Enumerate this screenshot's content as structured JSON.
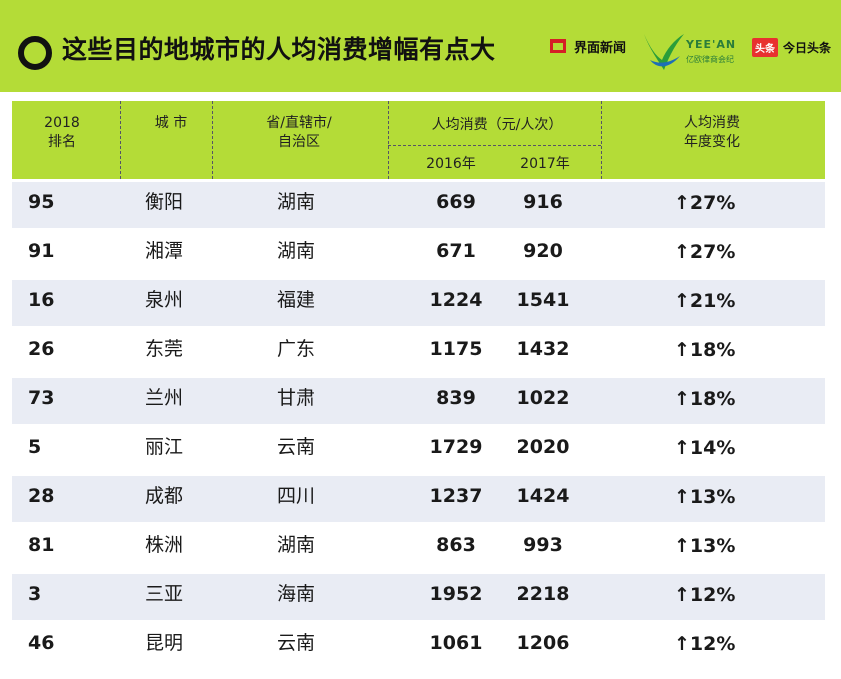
{
  "header": {
    "title": "这些目的地城市的人均消费增幅有点大",
    "logo1": "界面新闻",
    "logo2_main": "YEE'AN",
    "logo2_sub": "亿欧律商会纪",
    "logo3_badge": "头条",
    "logo3": "今日头条"
  },
  "colors": {
    "accent": "#b4dc37",
    "row_alt": "#e9ecf4",
    "logo_red": "#d51f26"
  },
  "table": {
    "headers": {
      "rank": [
        "2018",
        "排名"
      ],
      "city": "城 市",
      "province": [
        "省/直辖市/",
        "自治区"
      ],
      "spend": "人均消费（元/人次）",
      "y2016": "2016年",
      "y2017": "2017年",
      "change": [
        "人均消费",
        "年度变化"
      ]
    },
    "rows": [
      {
        "rank": "95",
        "city": "衡阳",
        "province": "湖南",
        "v2016": "669",
        "v2017": "916",
        "change": "↑27%"
      },
      {
        "rank": "91",
        "city": "湘潭",
        "province": "湖南",
        "v2016": "671",
        "v2017": "920",
        "change": "↑27%"
      },
      {
        "rank": "16",
        "city": "泉州",
        "province": "福建",
        "v2016": "1224",
        "v2017": "1541",
        "change": "↑21%"
      },
      {
        "rank": "26",
        "city": "东莞",
        "province": "广东",
        "v2016": "1175",
        "v2017": "1432",
        "change": "↑18%"
      },
      {
        "rank": "73",
        "city": "兰州",
        "province": "甘肃",
        "v2016": "839",
        "v2017": "1022",
        "change": "↑18%"
      },
      {
        "rank": "5",
        "city": "丽江",
        "province": "云南",
        "v2016": "1729",
        "v2017": "2020",
        "change": "↑14%"
      },
      {
        "rank": "28",
        "city": "成都",
        "province": "四川",
        "v2016": "1237",
        "v2017": "1424",
        "change": "↑13%"
      },
      {
        "rank": "81",
        "city": "株洲",
        "province": "湖南",
        "v2016": "863",
        "v2017": "993",
        "change": "↑13%"
      },
      {
        "rank": "3",
        "city": "三亚",
        "province": "海南",
        "v2016": "1952",
        "v2017": "2218",
        "change": "↑12%"
      },
      {
        "rank": "46",
        "city": "昆明",
        "province": "云南",
        "v2016": "1061",
        "v2017": "1206",
        "change": "↑12%"
      }
    ]
  }
}
